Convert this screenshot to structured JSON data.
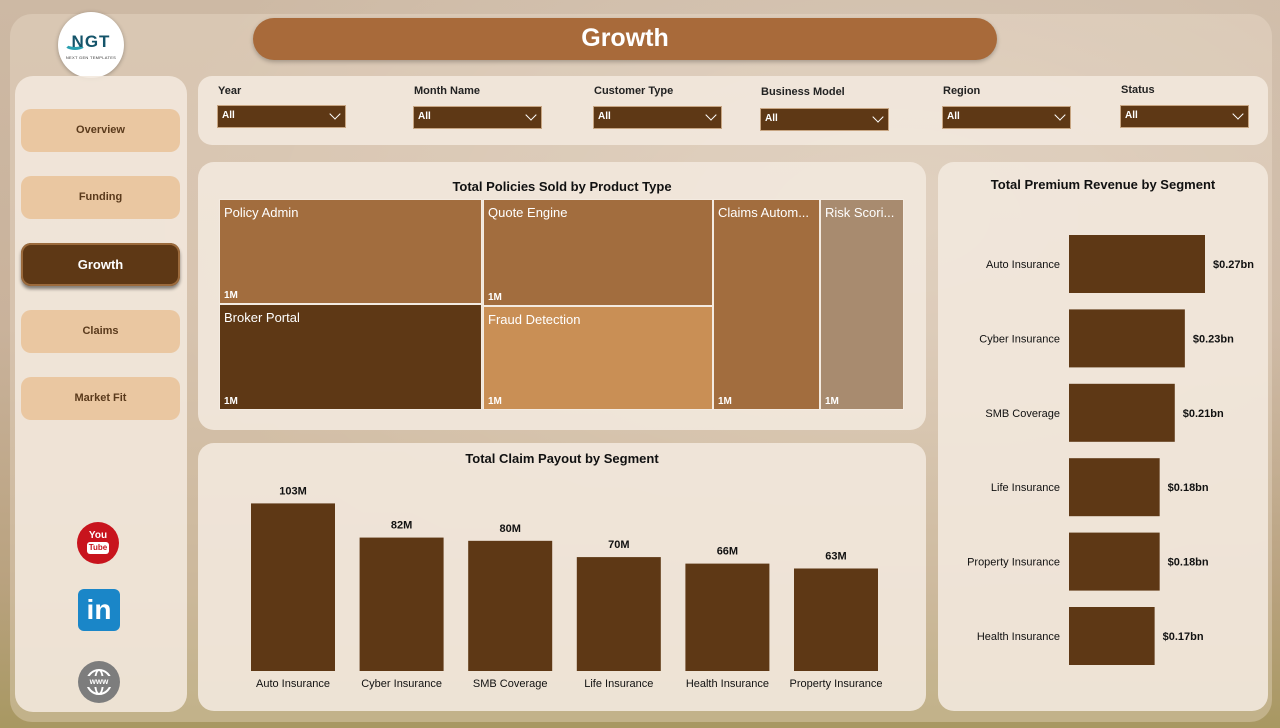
{
  "header": {
    "title": "Growth"
  },
  "logo": {
    "text": "NGT",
    "subtitle": "NEXT GEN TEMPLATES"
  },
  "sidebar": {
    "items": [
      {
        "label": "Overview",
        "active": false
      },
      {
        "label": "Funding",
        "active": false
      },
      {
        "label": "Growth",
        "active": true
      },
      {
        "label": "Claims",
        "active": false
      },
      {
        "label": "Market Fit",
        "active": false
      }
    ],
    "social": [
      {
        "icon": "youtube-icon",
        "label": "You Tube"
      },
      {
        "icon": "linkedin-icon",
        "label": "in"
      },
      {
        "icon": "website-icon",
        "label": "www"
      }
    ]
  },
  "filters": [
    {
      "label": "Year",
      "value": "All"
    },
    {
      "label": "Month Name",
      "value": "All"
    },
    {
      "label": "Customer Type",
      "value": "All"
    },
    {
      "label": "Business Model",
      "value": "All"
    },
    {
      "label": "Region",
      "value": "All"
    },
    {
      "label": "Status",
      "value": "All"
    }
  ],
  "colors": {
    "accent_dark": "#5e3815",
    "title_bar": "#a86a3a",
    "nav_button": "#eac7a1",
    "bar": "#5e3815",
    "treemap": [
      "#a26d3e",
      "#5e3815",
      "#c98f55",
      "#a26d3e",
      "#a88b6f"
    ]
  },
  "chart_data": [
    {
      "type": "treemap",
      "title": "Total Policies Sold by Product Type",
      "items": [
        {
          "name": "Policy Admin",
          "label": "Policy Admin",
          "value_label": "1M"
        },
        {
          "name": "Broker Portal",
          "label": "Broker Portal",
          "value_label": "1M"
        },
        {
          "name": "Quote Engine",
          "label": "Quote Engine",
          "value_label": "1M"
        },
        {
          "name": "Fraud Detection",
          "label": "Fraud Detection",
          "value_label": "1M"
        },
        {
          "name": "Claims Automation",
          "label": "Claims Autom...",
          "value_label": "1M"
        },
        {
          "name": "Risk Scoring",
          "label": "Risk Scori...",
          "value_label": "1M"
        }
      ]
    },
    {
      "type": "bar",
      "title": "Total Claim Payout by Segment",
      "categories": [
        "Auto Insurance",
        "Cyber Insurance",
        "SMB Coverage",
        "Life Insurance",
        "Health Insurance",
        "Property Insurance"
      ],
      "values": [
        103,
        82,
        80,
        70,
        66,
        63
      ],
      "labels": [
        "103M",
        "82M",
        "80M",
        "70M",
        "66M",
        "63M"
      ],
      "ylim": [
        0,
        118
      ]
    },
    {
      "type": "bar",
      "orientation": "horizontal",
      "title": "Total Premium Revenue by Segment",
      "categories": [
        "Auto Insurance",
        "Cyber Insurance",
        "SMB Coverage",
        "Life Insurance",
        "Property Insurance",
        "Health Insurance"
      ],
      "values": [
        0.27,
        0.23,
        0.21,
        0.18,
        0.18,
        0.17
      ],
      "labels": [
        "$0.27bn",
        "$0.23bn",
        "$0.21bn",
        "$0.18bn",
        "$0.18bn",
        "$0.17bn"
      ],
      "xlim": [
        0,
        0.32
      ]
    }
  ]
}
